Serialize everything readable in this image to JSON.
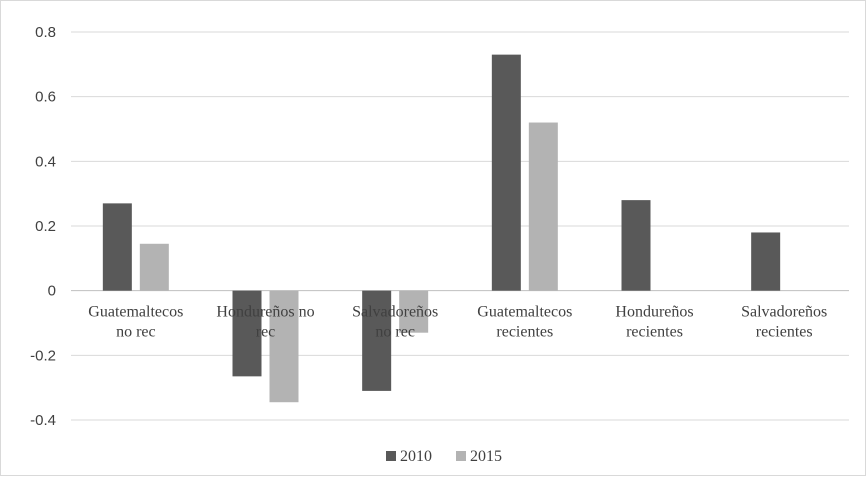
{
  "chart_data": {
    "type": "bar",
    "title": "",
    "xlabel": "",
    "ylabel": "",
    "ylim": [
      -0.4,
      0.8
    ],
    "yticks": [
      "0.8",
      "0.6",
      "0.4",
      "0.2",
      "0",
      "-0.2",
      "-0.4"
    ],
    "ytick_values": [
      0.8,
      0.6,
      0.4,
      0.2,
      0,
      -0.2,
      -0.4
    ],
    "grid": true,
    "legend_position": "bottom",
    "categories": [
      [
        "Guatemaltecos",
        "no rec"
      ],
      [
        "Hondureños no",
        "rec"
      ],
      [
        "Salvadoreños",
        "no rec"
      ],
      [
        "Guatemaltecos",
        "recientes"
      ],
      [
        "Hondureños",
        "recientes"
      ],
      [
        "Salvadoreños",
        "recientes"
      ]
    ],
    "series": [
      {
        "name": "2010",
        "color": "#595959",
        "values": [
          0.27,
          -0.265,
          -0.31,
          0.73,
          0.28,
          0.18
        ]
      },
      {
        "name": "2015",
        "color": "#b3b3b3",
        "values": [
          0.145,
          -0.345,
          -0.13,
          0.52,
          null,
          null
        ]
      }
    ]
  }
}
